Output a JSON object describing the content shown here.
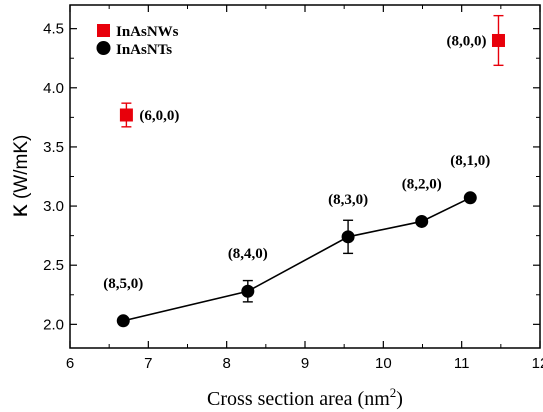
{
  "chart_data": {
    "type": "scatter",
    "xlabel": "Cross section area (nm",
    "xlabel_sup": "2",
    "xlabel_close": ")",
    "ylabel_symbol": "κ",
    "ylabel_unit": " (W/mK)",
    "xlim": [
      6,
      12
    ],
    "ylim": [
      1.8,
      4.7
    ],
    "x_ticks": [
      "6",
      "7",
      "8",
      "9",
      "10",
      "11",
      "12"
    ],
    "y_ticks": [
      "2.0",
      "2.5",
      "3.0",
      "3.5",
      "4.0",
      "4.5"
    ],
    "legend_position": "top-left",
    "series": [
      {
        "name": "InAsNWs",
        "marker": "square",
        "color": "#e8000b",
        "connected": false,
        "points": [
          {
            "x": 6.72,
            "y": 3.77,
            "err": 0.1,
            "label": "(6,0,0)",
            "label_pos": "right"
          },
          {
            "x": 11.47,
            "y": 4.4,
            "err": 0.21,
            "label": "(8,0,0)",
            "label_pos": "left"
          }
        ]
      },
      {
        "name": "InAsNTs",
        "marker": "circle",
        "color": "#000000",
        "connected": true,
        "points": [
          {
            "x": 6.68,
            "y": 2.03,
            "err": 0.0,
            "label": "(8,5,0)",
            "label_pos": "above"
          },
          {
            "x": 8.27,
            "y": 2.28,
            "err": 0.09,
            "label": "(8,4,0)",
            "label_pos": "above"
          },
          {
            "x": 9.55,
            "y": 2.74,
            "err": 0.14,
            "label": "(8,3,0)",
            "label_pos": "above"
          },
          {
            "x": 10.49,
            "y": 2.87,
            "err": 0.0,
            "label": "(8,2,0)",
            "label_pos": "above"
          },
          {
            "x": 11.11,
            "y": 3.07,
            "err": 0.0,
            "label": "(8,1,0)",
            "label_pos": "above"
          }
        ]
      }
    ]
  }
}
